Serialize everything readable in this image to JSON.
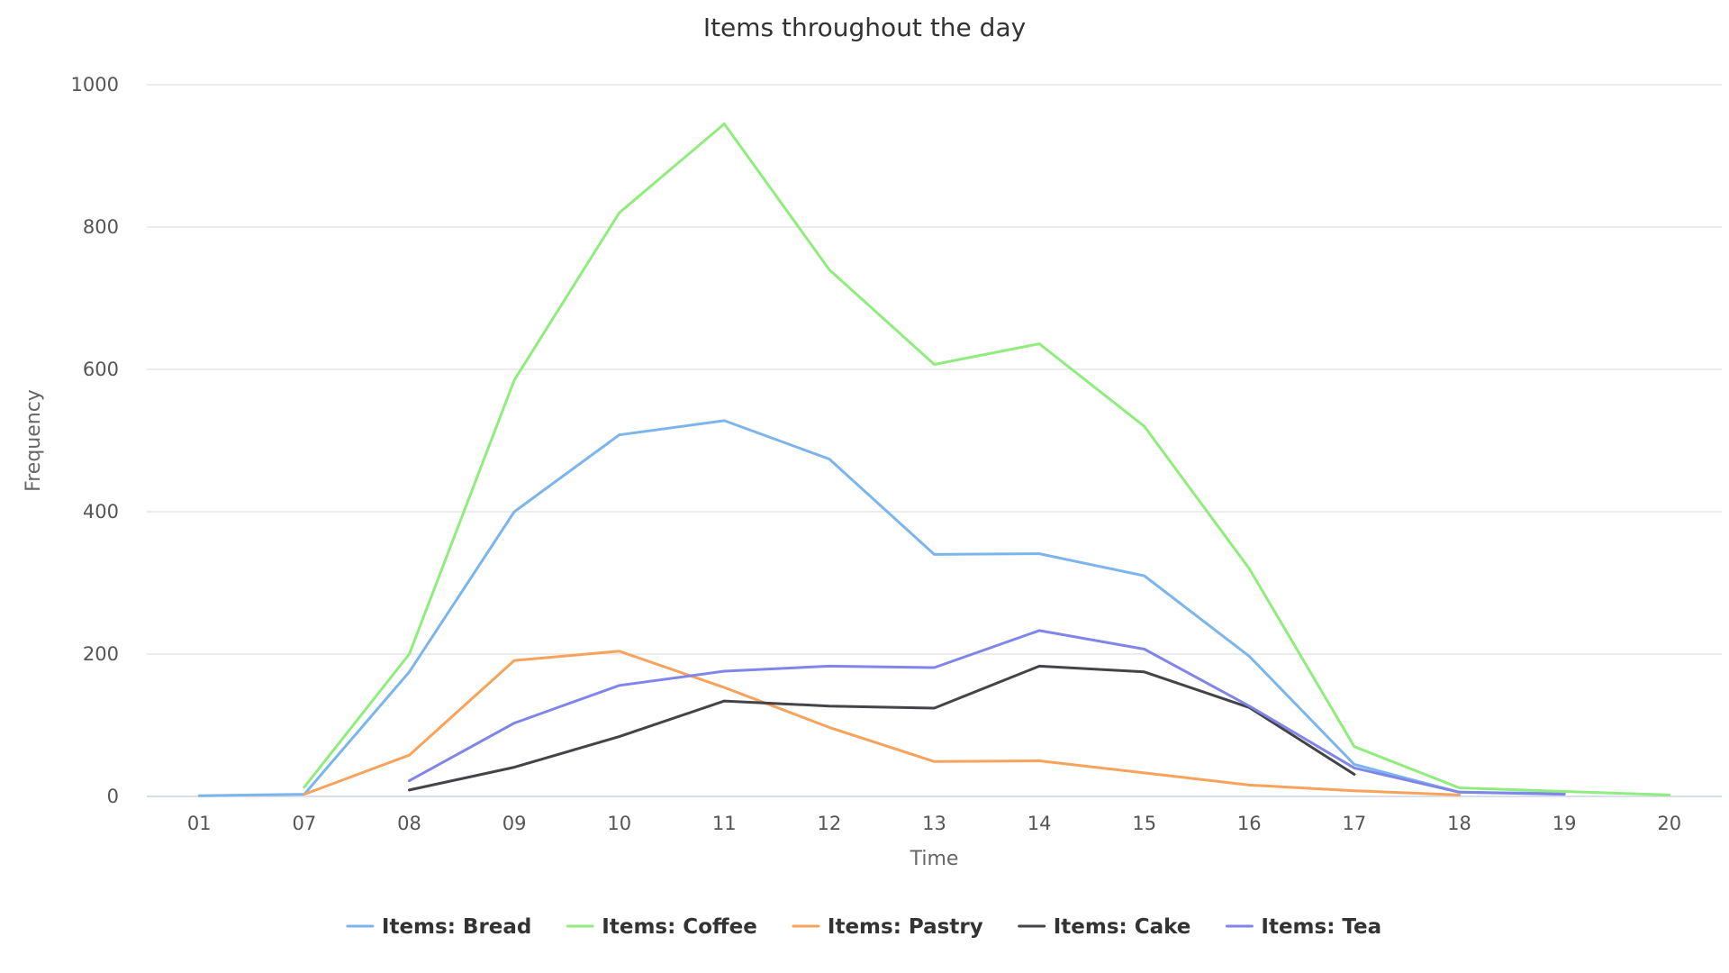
{
  "chart_data": {
    "type": "line",
    "title": "Items throughout the day",
    "xlabel": "Time",
    "ylabel": "Frequency",
    "categories": [
      "01",
      "07",
      "08",
      "09",
      "10",
      "11",
      "12",
      "13",
      "14",
      "15",
      "16",
      "17",
      "18",
      "19",
      "20"
    ],
    "ylim": [
      0,
      1000
    ],
    "yticks": [
      0,
      200,
      400,
      600,
      800,
      1000
    ],
    "grid": true,
    "legend": "bottom-center",
    "series": [
      {
        "name": "Items: Bread",
        "color": "#7cb5ec",
        "values": [
          1,
          3,
          175,
          400,
          508,
          528,
          474,
          340,
          341,
          310,
          197,
          45,
          6,
          4,
          null
        ]
      },
      {
        "name": "Items: Coffee",
        "color": "#90ed7d",
        "values": [
          null,
          13,
          200,
          585,
          820,
          945,
          740,
          607,
          636,
          520,
          320,
          70,
          12,
          7,
          2
        ]
      },
      {
        "name": "Items: Pastry",
        "color": "#f7a35c",
        "values": [
          null,
          3,
          58,
          191,
          204,
          153,
          97,
          49,
          50,
          33,
          16,
          8,
          2,
          null,
          null
        ]
      },
      {
        "name": "Items: Cake",
        "color": "#434348",
        "values": [
          null,
          null,
          9,
          41,
          84,
          134,
          127,
          124,
          183,
          175,
          125,
          31,
          null,
          null,
          null
        ]
      },
      {
        "name": "Items: Tea",
        "color": "#8085e9",
        "values": [
          null,
          null,
          22,
          103,
          156,
          176,
          183,
          181,
          233,
          207,
          127,
          40,
          6,
          3,
          null
        ]
      }
    ]
  }
}
